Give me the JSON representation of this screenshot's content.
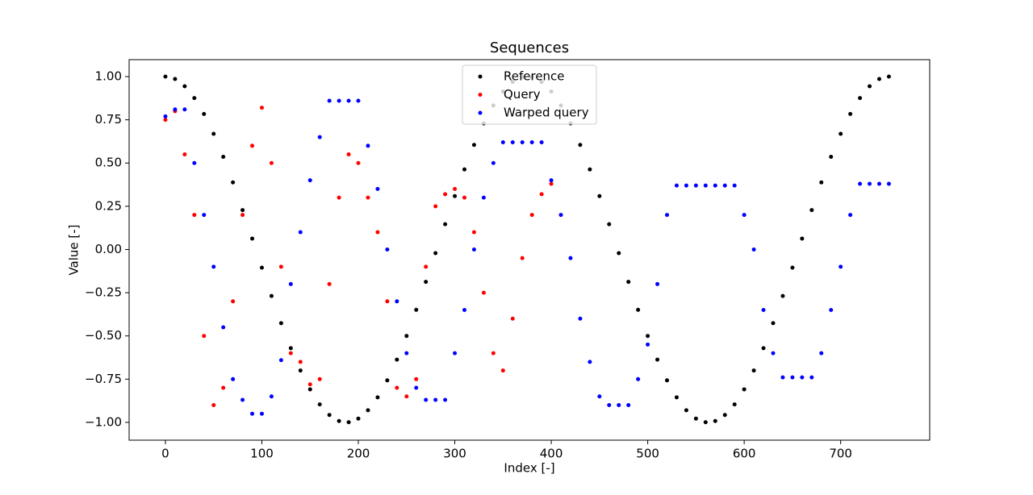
{
  "chart_data": {
    "type": "scatter",
    "title": "Sequences",
    "xlabel": "Index [-]",
    "ylabel": "Value [-]",
    "xlim": [
      -37.6,
      792.3
    ],
    "ylim": [
      -1.103,
      1.098
    ],
    "xticks": [
      0,
      100,
      200,
      300,
      400,
      500,
      600,
      700
    ],
    "yticks": [
      {
        "value": 1,
        "label": "1.00"
      },
      {
        "value": 0.75,
        "label": "0.75"
      },
      {
        "value": 0.5,
        "label": "0.50"
      },
      {
        "value": 0.25,
        "label": "0.25"
      },
      {
        "value": 0,
        "label": "0.00"
      },
      {
        "value": -0.25,
        "label": "−0.25"
      },
      {
        "value": -0.5,
        "label": "−0.50"
      },
      {
        "value": -0.75,
        "label": "−0.75"
      },
      {
        "value": -1,
        "label": "−1.00"
      }
    ],
    "legend": "upper center",
    "series": [
      {
        "name": "Reference",
        "color": "#000000",
        "x": [
          0,
          10,
          20,
          30,
          40,
          50,
          60,
          70,
          80,
          90,
          100,
          110,
          120,
          130,
          140,
          150,
          160,
          170,
          180,
          190,
          200,
          210,
          220,
          230,
          240,
          250,
          260,
          270,
          280,
          290,
          300,
          310,
          320,
          330,
          340,
          350,
          360,
          370,
          380,
          390,
          400,
          410,
          420,
          430,
          440,
          450,
          460,
          470,
          480,
          490,
          500,
          510,
          520,
          530,
          540,
          550,
          560,
          570,
          580,
          590,
          600,
          610,
          620,
          630,
          640,
          650,
          660,
          670,
          680,
          690,
          700,
          710,
          720,
          730,
          740,
          750
        ],
        "values": [
          1.0,
          0.986,
          0.944,
          0.876,
          0.784,
          0.669,
          0.536,
          0.388,
          0.228,
          0.063,
          -0.105,
          -0.269,
          -0.426,
          -0.571,
          -0.7,
          -0.809,
          -0.896,
          -0.957,
          -0.992,
          -0.999,
          -0.978,
          -0.93,
          -0.855,
          -0.757,
          -0.637,
          -0.5,
          -0.349,
          -0.187,
          -0.021,
          0.146,
          0.309,
          0.463,
          0.605,
          0.729,
          0.833,
          0.914,
          0.969,
          0.996,
          0.996,
          0.969,
          0.914,
          0.833,
          0.729,
          0.605,
          0.463,
          0.309,
          0.146,
          -0.021,
          -0.187,
          -0.349,
          -0.5,
          -0.637,
          -0.757,
          -0.855,
          -0.93,
          -0.978,
          -0.999,
          -0.992,
          -0.957,
          -0.896,
          -0.809,
          -0.7,
          -0.571,
          -0.426,
          -0.269,
          -0.105,
          0.063,
          0.228,
          0.388,
          0.536,
          0.669,
          0.784,
          0.876,
          0.944,
          0.986,
          1.0
        ]
      },
      {
        "name": "Query",
        "color": "#ff0000",
        "x": [
          0,
          10,
          20,
          30,
          40,
          50,
          60,
          70,
          80,
          90,
          100,
          110,
          120,
          130,
          140,
          150,
          160,
          170,
          180,
          190,
          200,
          210,
          220,
          230,
          240,
          250,
          260,
          270,
          280,
          290,
          300,
          310,
          320,
          330,
          340,
          350,
          360,
          370,
          380,
          390,
          400
        ],
        "values": [
          0.75,
          0.8,
          0.55,
          0.2,
          -0.5,
          -0.9,
          -0.8,
          -0.3,
          0.2,
          0.6,
          0.82,
          0.5,
          -0.1,
          -0.6,
          -0.65,
          -0.78,
          -0.75,
          -0.2,
          0.3,
          0.55,
          0.5,
          0.3,
          0.1,
          -0.3,
          -0.8,
          -0.85,
          -0.75,
          -0.1,
          0.25,
          0.32,
          0.35,
          0.3,
          0.1,
          -0.25,
          -0.6,
          -0.7,
          -0.4,
          -0.05,
          0.2,
          0.32,
          0.38
        ]
      },
      {
        "name": "Warped query",
        "color": "#0000ff",
        "x": [
          0,
          10,
          20,
          30,
          40,
          50,
          60,
          70,
          80,
          90,
          100,
          110,
          120,
          130,
          140,
          150,
          160,
          170,
          180,
          190,
          200,
          210,
          220,
          230,
          240,
          250,
          260,
          270,
          280,
          290,
          300,
          310,
          320,
          330,
          340,
          350,
          360,
          370,
          380,
          390,
          400,
          410,
          420,
          430,
          440,
          450,
          460,
          470,
          480,
          490,
          500,
          510,
          520,
          530,
          540,
          550,
          560,
          570,
          580,
          590,
          600,
          610,
          620,
          630,
          640,
          650,
          660,
          670,
          680,
          690,
          700,
          710,
          720,
          730,
          740,
          750
        ],
        "values": [
          0.77,
          0.81,
          0.81,
          0.5,
          0.2,
          -0.1,
          -0.45,
          -0.75,
          -0.87,
          -0.95,
          -0.95,
          -0.85,
          -0.64,
          -0.2,
          0.1,
          0.4,
          0.65,
          0.86,
          0.86,
          0.86,
          0.86,
          0.6,
          0.35,
          0.0,
          -0.3,
          -0.6,
          -0.8,
          -0.87,
          -0.87,
          -0.87,
          -0.6,
          -0.35,
          0.0,
          0.3,
          0.5,
          0.62,
          0.62,
          0.62,
          0.62,
          0.62,
          0.4,
          0.2,
          -0.05,
          -0.4,
          -0.65,
          -0.85,
          -0.9,
          -0.9,
          -0.9,
          -0.75,
          -0.55,
          -0.2,
          0.2,
          0.37,
          0.37,
          0.37,
          0.37,
          0.37,
          0.37,
          0.37,
          0.2,
          0.0,
          -0.35,
          -0.6,
          -0.74,
          -0.74,
          -0.74,
          -0.74,
          -0.6,
          -0.35,
          -0.1,
          0.2,
          0.38,
          0.38,
          0.38,
          0.38
        ]
      }
    ]
  }
}
